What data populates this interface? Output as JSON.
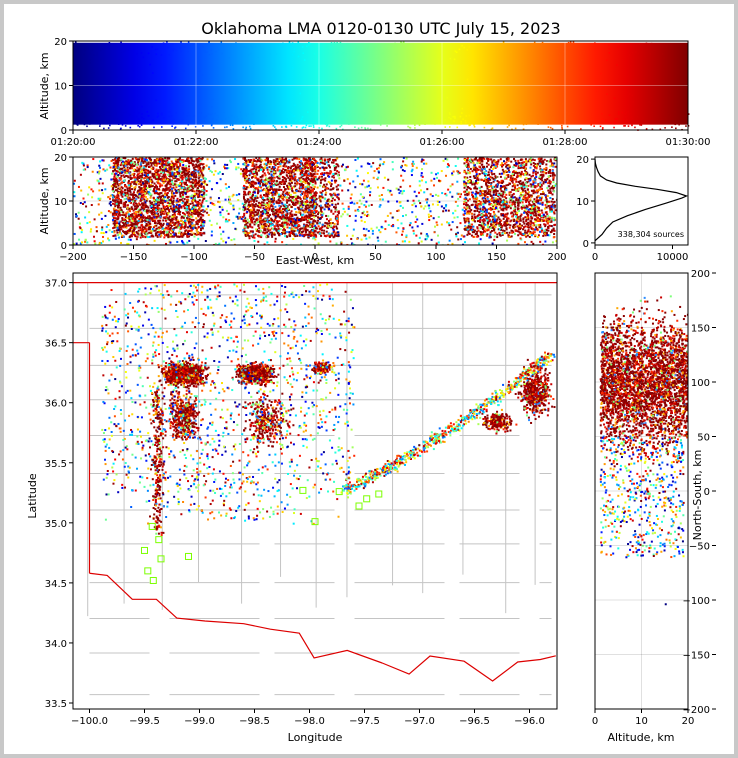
{
  "title": "Oklahoma LMA 0120-0130 UTC July 15, 2023",
  "colors": {
    "background": "#ffffff",
    "border": "#c8c8c8",
    "state_border": "#dd0000",
    "county_line": "#c4c4c4",
    "station_marker": "#7cff00"
  },
  "chart_data": [
    {
      "id": "time_altitude",
      "type": "scatter",
      "xlabel": "",
      "ylabel": "Altitude, km",
      "xticks": [
        "01:20:00",
        "01:22:00",
        "01:24:00",
        "01:26:00",
        "01:28:00",
        "01:30:00"
      ],
      "xlim_minutes": [
        20,
        30
      ],
      "ylim": [
        0,
        20
      ],
      "yticks": [
        "0",
        "10",
        "20"
      ],
      "colormap": "jet by time",
      "grid": true
    },
    {
      "id": "ew_altitude",
      "type": "scatter",
      "xlabel": "East-West, km",
      "ylabel": "Altitude, km",
      "xlim": [
        -200,
        200
      ],
      "xticks": [
        "−200",
        "−150",
        "−100",
        "−50",
        "0",
        "50",
        "100",
        "150",
        "200"
      ],
      "ylim": [
        0,
        20
      ],
      "yticks": [
        "0",
        "10",
        "20"
      ],
      "grid": true
    },
    {
      "id": "altitude_histogram",
      "type": "line",
      "xlim": [
        0,
        12000
      ],
      "xticks": [
        "0",
        "10000"
      ],
      "ylim": [
        0,
        20
      ],
      "yticks": [
        "0",
        "10",
        "20"
      ],
      "annotation": "338,304 sources",
      "profile": [
        [
          0,
          0.5
        ],
        [
          300,
          1
        ],
        [
          900,
          2
        ],
        [
          1500,
          3.5
        ],
        [
          2300,
          5
        ],
        [
          4200,
          6.5
        ],
        [
          6500,
          8
        ],
        [
          9200,
          9.5
        ],
        [
          11200,
          10.7
        ],
        [
          11800,
          11.2
        ],
        [
          10500,
          12
        ],
        [
          8000,
          12.8
        ],
        [
          5200,
          13.5
        ],
        [
          2800,
          14.3
        ],
        [
          1500,
          15
        ],
        [
          700,
          16
        ],
        [
          400,
          17
        ],
        [
          200,
          18
        ],
        [
          50,
          19
        ],
        [
          0,
          20
        ]
      ]
    },
    {
      "id": "plan_view",
      "type": "scatter",
      "xlabel": "Longitude",
      "ylabel": "Latitude",
      "xlim": [
        -100.15,
        -95.75
      ],
      "ylim": [
        33.45,
        37.08
      ],
      "xticks": [
        "−100.0",
        "−99.5",
        "−99.0",
        "−98.5",
        "−98.0",
        "−97.5",
        "−97.0",
        "−96.5",
        "−96.0"
      ],
      "yticks": [
        "33.5",
        "34.0",
        "34.5",
        "35.0",
        "35.5",
        "36.0",
        "36.5",
        "37.0"
      ],
      "stations": [
        [
          -99.43,
          34.97
        ],
        [
          -99.37,
          34.86
        ],
        [
          -99.5,
          34.77
        ],
        [
          -99.35,
          34.7
        ],
        [
          -99.47,
          34.6
        ],
        [
          -99.42,
          34.52
        ],
        [
          -99.1,
          34.72
        ],
        [
          -98.06,
          35.27
        ],
        [
          -97.95,
          35.01
        ],
        [
          -97.73,
          35.26
        ],
        [
          -97.55,
          35.14
        ],
        [
          -97.48,
          35.2
        ],
        [
          -97.37,
          35.24
        ]
      ]
    },
    {
      "id": "altitude_ns",
      "type": "scatter",
      "xlabel": "Altitude, km",
      "ylabel": "North-South, km",
      "xlim": [
        0,
        20
      ],
      "xticks": [
        "0",
        "10",
        "20"
      ],
      "ylim": [
        -200,
        200
      ],
      "yticks": [
        "200",
        "150",
        "100",
        "50",
        "0",
        "−50",
        "−100",
        "−150",
        "−200"
      ],
      "grid": true
    }
  ]
}
